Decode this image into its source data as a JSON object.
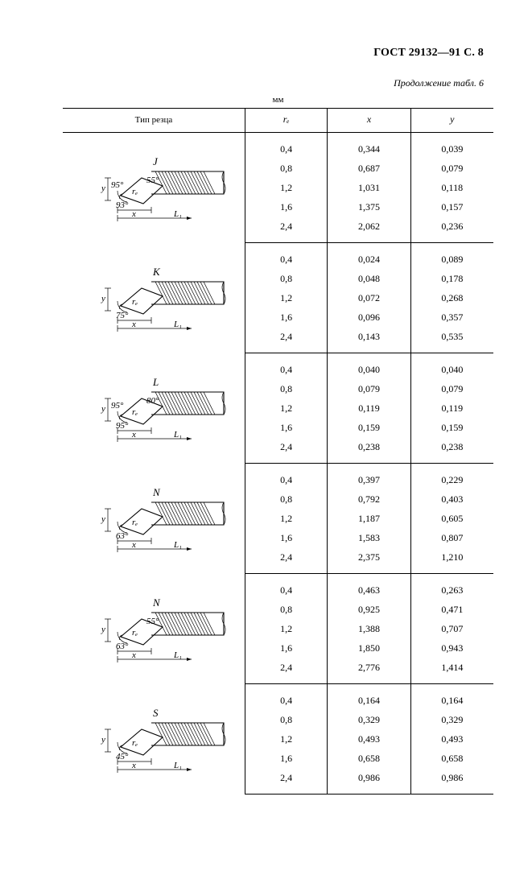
{
  "page": {
    "standard": "ГОСТ 29132—91 С. 8",
    "continuation": "Продолжение табл. 6",
    "unit_label": "мм"
  },
  "table": {
    "headers": {
      "type": "Тип резца",
      "r": "rₑ",
      "x": "x",
      "y": "y"
    },
    "groups": [
      {
        "letter": "J",
        "angles": {
          "insert": "55°",
          "a1": "93°",
          "a2": "95°"
        },
        "dim_labels": {
          "x": "x",
          "y": "y",
          "L": "L₁",
          "r": "rₑ"
        },
        "rows": [
          {
            "r": "0,4",
            "x": "0,344",
            "y": "0,039"
          },
          {
            "r": "0,8",
            "x": "0,687",
            "y": "0,079"
          },
          {
            "r": "1,2",
            "x": "1,031",
            "y": "0,118"
          },
          {
            "r": "1,6",
            "x": "1,375",
            "y": "0,157"
          },
          {
            "r": "2,4",
            "x": "2,062",
            "y": "0,236"
          }
        ]
      },
      {
        "letter": "K",
        "angles": {
          "insert": "",
          "a1": "75°",
          "a2": ""
        },
        "dim_labels": {
          "x": "x",
          "y": "y",
          "L": "L₁",
          "r": "rₑ"
        },
        "rows": [
          {
            "r": "0,4",
            "x": "0,024",
            "y": "0,089"
          },
          {
            "r": "0,8",
            "x": "0,048",
            "y": "0,178"
          },
          {
            "r": "1,2",
            "x": "0,072",
            "y": "0,268"
          },
          {
            "r": "1,6",
            "x": "0,096",
            "y": "0,357"
          },
          {
            "r": "2,4",
            "x": "0,143",
            "y": "0,535"
          }
        ]
      },
      {
        "letter": "L",
        "angles": {
          "insert": "80°",
          "a1": "95°",
          "a2": "95°"
        },
        "dim_labels": {
          "x": "x",
          "y": "y",
          "L": "L₁",
          "r": "rₑ"
        },
        "rows": [
          {
            "r": "0,4",
            "x": "0,040",
            "y": "0,040"
          },
          {
            "r": "0,8",
            "x": "0,079",
            "y": "0,079"
          },
          {
            "r": "1,2",
            "x": "0,119",
            "y": "0,119"
          },
          {
            "r": "1,6",
            "x": "0,159",
            "y": "0,159"
          },
          {
            "r": "2,4",
            "x": "0,238",
            "y": "0,238"
          }
        ]
      },
      {
        "letter": "N",
        "angles": {
          "insert": "",
          "a1": "63°",
          "a2": ""
        },
        "dim_labels": {
          "x": "x",
          "y": "y",
          "L": "L₁",
          "r": "rₑ"
        },
        "rows": [
          {
            "r": "0,4",
            "x": "0,397",
            "y": "0,229"
          },
          {
            "r": "0,8",
            "x": "0,792",
            "y": "0,403"
          },
          {
            "r": "1,2",
            "x": "1,187",
            "y": "0,605"
          },
          {
            "r": "1,6",
            "x": "1,583",
            "y": "0,807"
          },
          {
            "r": "2,4",
            "x": "2,375",
            "y": "1,210"
          }
        ]
      },
      {
        "letter": "N",
        "angles": {
          "insert": "55°",
          "a1": "63°",
          "a2": ""
        },
        "dim_labels": {
          "x": "x",
          "y": "y",
          "L": "L₁",
          "r": "rₑ"
        },
        "rows": [
          {
            "r": "0,4",
            "x": "0,463",
            "y": "0,263"
          },
          {
            "r": "0,8",
            "x": "0,925",
            "y": "0,471"
          },
          {
            "r": "1,2",
            "x": "1,388",
            "y": "0,707"
          },
          {
            "r": "1,6",
            "x": "1,850",
            "y": "0,943"
          },
          {
            "r": "2,4",
            "x": "2,776",
            "y": "1,414"
          }
        ]
      },
      {
        "letter": "S",
        "angles": {
          "insert": "",
          "a1": "45°",
          "a2": ""
        },
        "dim_labels": {
          "x": "x",
          "y": "y",
          "L": "L₁",
          "r": "rₑ"
        },
        "rows": [
          {
            "r": "0,4",
            "x": "0,164",
            "y": "0,164"
          },
          {
            "r": "0,8",
            "x": "0,329",
            "y": "0,329"
          },
          {
            "r": "1,2",
            "x": "0,493",
            "y": "0,493"
          },
          {
            "r": "1,6",
            "x": "0,658",
            "y": "0,658"
          },
          {
            "r": "2,4",
            "x": "0,986",
            "y": "0,986"
          }
        ]
      }
    ]
  },
  "diagram_style": {
    "stroke": "#000000",
    "stroke_width": 1.1,
    "thin_stroke_width": 0.7,
    "hatch_spacing": 4
  }
}
